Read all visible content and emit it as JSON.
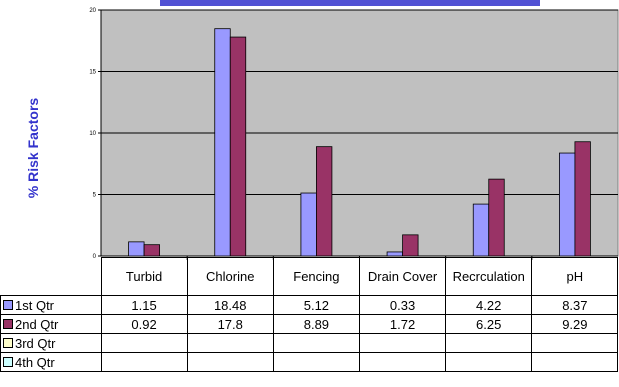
{
  "chart_data": {
    "type": "bar",
    "title": "",
    "ylabel": "% Risk Factors",
    "xlabel": "",
    "ylim": [
      0,
      20
    ],
    "yticks": [
      0,
      5,
      10,
      15,
      20
    ],
    "grid": true,
    "legend_placement": "data-table-left",
    "plot_background": "#c0c0c0",
    "categories": [
      "Turbid",
      "Chlorine",
      "Fencing",
      "Drain Cover",
      "Recrculation",
      "pH"
    ],
    "series": [
      {
        "name": "1st Qtr",
        "color": "#9999ff",
        "values": [
          1.15,
          18.48,
          5.12,
          0.33,
          4.22,
          8.37
        ],
        "labels": [
          "1.15",
          "18.48",
          "5.12",
          "0.33",
          "4.22",
          "8.37"
        ]
      },
      {
        "name": "2nd Qtr",
        "color": "#993366",
        "values": [
          0.92,
          17.8,
          8.89,
          1.72,
          6.25,
          9.29
        ],
        "labels": [
          "0.92",
          "17.8",
          "8.89",
          "1.72",
          "6.25",
          "9.29"
        ]
      },
      {
        "name": "3rd Qtr",
        "color": "#ffffcc",
        "values": [
          null,
          null,
          null,
          null,
          null,
          null
        ],
        "labels": [
          "",
          "",
          "",
          "",
          "",
          ""
        ]
      },
      {
        "name": "4th Qtr",
        "color": "#ccffff",
        "values": [
          null,
          null,
          null,
          null,
          null,
          null
        ],
        "labels": [
          "",
          "",
          "",
          "",
          "",
          ""
        ]
      }
    ]
  },
  "title_fragment_color": "#3333cc"
}
